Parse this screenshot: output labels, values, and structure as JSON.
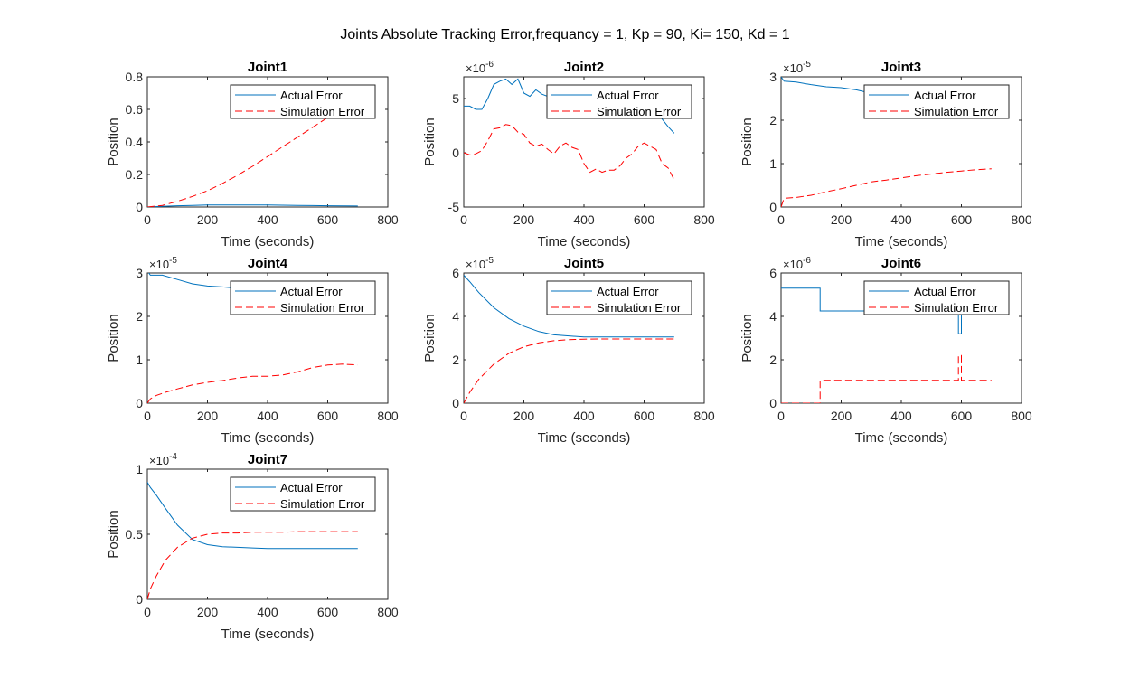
{
  "figure_title": "Joints Absolute Tracking Error,frequancy = 1, Kp = 90, Ki= 150, Kd = 1",
  "colors": {
    "actual": "#0072BD",
    "simulation": "#FF0000",
    "axes": "#262626"
  },
  "chart_data": [
    {
      "type": "line",
      "title": "Joint1",
      "xlabel": "Time (seconds)",
      "ylabel": "Position",
      "xlim": [
        0,
        800
      ],
      "ylim": [
        0,
        0.8
      ],
      "xticks": [
        "0",
        "200",
        "400",
        "600",
        "800"
      ],
      "yticks": [
        "0",
        "0.2",
        "0.4",
        "0.6",
        "0.8"
      ],
      "exponent": "",
      "legend": {
        "position": "top-right",
        "entries": [
          "Actual Error",
          "Simulation Error"
        ]
      },
      "series": [
        {
          "name": "Actual Error",
          "style": "solid",
          "x": [
            0,
            20,
            50,
            100,
            150,
            200,
            250,
            300,
            350,
            400,
            450,
            500,
            550,
            600,
            650,
            700
          ],
          "y": [
            0,
            0.002,
            0.004,
            0.008,
            0.01,
            0.012,
            0.013,
            0.013,
            0.013,
            0.012,
            0.011,
            0.01,
            0.009,
            0.008,
            0.007,
            0.006
          ]
        },
        {
          "name": "Simulation Error",
          "style": "dashed",
          "x": [
            0,
            50,
            100,
            150,
            200,
            250,
            300,
            350,
            400,
            450,
            500,
            550,
            600,
            650,
            700
          ],
          "y": [
            0,
            0.01,
            0.035,
            0.065,
            0.1,
            0.145,
            0.195,
            0.25,
            0.31,
            0.37,
            0.43,
            0.49,
            0.55,
            0.6,
            0.64
          ]
        }
      ]
    },
    {
      "type": "line",
      "title": "Joint2",
      "xlabel": "Time (seconds)",
      "ylabel": "Position",
      "xlim": [
        0,
        800
      ],
      "ylim": [
        -5,
        7
      ],
      "xticks": [
        "0",
        "200",
        "400",
        "600",
        "800"
      ],
      "yticks": [
        "-5",
        "0",
        "5"
      ],
      "exponent": "-6",
      "legend": {
        "position": "top-right",
        "entries": [
          "Actual Error",
          "Simulation Error"
        ]
      },
      "series": [
        {
          "name": "Actual Error",
          "style": "solid",
          "x": [
            0,
            20,
            40,
            60,
            80,
            100,
            120,
            140,
            160,
            180,
            200,
            220,
            240,
            260,
            280,
            300,
            320,
            340,
            360,
            380,
            400,
            420,
            440,
            460,
            480,
            500,
            520,
            540,
            560,
            580,
            600,
            620,
            640,
            660,
            680,
            700
          ],
          "y": [
            4.3,
            4.3,
            4,
            4,
            5,
            6.3,
            6.6,
            6.8,
            6.3,
            6.8,
            5.5,
            5.2,
            5.8,
            5.4,
            5.2,
            4.2,
            4.5,
            4.8,
            5,
            4.6,
            3.9,
            4.5,
            3.9,
            3.4,
            3.9,
            4.2,
            3.6,
            3.4,
            3.8,
            3.9,
            4,
            4.2,
            4,
            3.1,
            2.4,
            1.8
          ]
        },
        {
          "name": "Simulation Error",
          "style": "dashed",
          "x": [
            0,
            20,
            40,
            60,
            80,
            100,
            120,
            140,
            160,
            180,
            200,
            220,
            240,
            260,
            280,
            300,
            320,
            340,
            360,
            380,
            400,
            420,
            440,
            460,
            480,
            500,
            520,
            540,
            560,
            580,
            600,
            620,
            640,
            660,
            680,
            700
          ],
          "y": [
            0,
            -0.2,
            -0.1,
            0.2,
            1.1,
            2.2,
            2.3,
            2.6,
            2.5,
            1.9,
            1.7,
            0.9,
            0.6,
            0.8,
            0.3,
            -0.1,
            0.6,
            0.9,
            0.5,
            0.3,
            -1,
            -1.8,
            -1.5,
            -1.8,
            -1.6,
            -1.6,
            -1.2,
            -0.5,
            -0.1,
            0.6,
            0.9,
            0.6,
            0.3,
            -1,
            -1.4,
            -2.5
          ]
        }
      ]
    },
    {
      "type": "line",
      "title": "Joint3",
      "xlabel": "Time (seconds)",
      "ylabel": "Position",
      "xlim": [
        0,
        800
      ],
      "ylim": [
        0,
        3
      ],
      "xticks": [
        "0",
        "200",
        "400",
        "600",
        "800"
      ],
      "yticks": [
        "0",
        "1",
        "2",
        "3"
      ],
      "exponent": "-5",
      "legend": {
        "position": "top-right",
        "entries": [
          "Actual Error",
          "Simulation Error"
        ]
      },
      "series": [
        {
          "name": "Actual Error",
          "style": "solid",
          "x": [
            0,
            10,
            50,
            100,
            150,
            200,
            250,
            300,
            350,
            400,
            450,
            500,
            550,
            600,
            650,
            700
          ],
          "y": [
            3,
            2.9,
            2.88,
            2.82,
            2.77,
            2.75,
            2.7,
            2.62,
            2.6,
            2.58,
            2.57,
            2.55,
            2.55,
            2.55,
            2.55,
            2.55
          ]
        },
        {
          "name": "Simulation Error",
          "style": "dashed",
          "x": [
            0,
            10,
            50,
            100,
            150,
            200,
            250,
            300,
            350,
            400,
            450,
            500,
            550,
            600,
            650,
            700
          ],
          "y": [
            0,
            0.2,
            0.22,
            0.27,
            0.35,
            0.42,
            0.5,
            0.58,
            0.62,
            0.67,
            0.72,
            0.76,
            0.8,
            0.83,
            0.86,
            0.88
          ]
        }
      ]
    },
    {
      "type": "line",
      "title": "Joint4",
      "xlabel": "Time (seconds)",
      "ylabel": "Position",
      "xlim": [
        0,
        800
      ],
      "ylim": [
        0,
        3
      ],
      "xticks": [
        "0",
        "200",
        "400",
        "600",
        "800"
      ],
      "yticks": [
        "0",
        "1",
        "2",
        "3"
      ],
      "exponent": "-5",
      "legend": {
        "position": "top-right",
        "entries": [
          "Actual Error",
          "Simulation Error"
        ]
      },
      "series": [
        {
          "name": "Actual Error",
          "style": "solid",
          "x": [
            0,
            10,
            50,
            100,
            150,
            200,
            250,
            300,
            350,
            400,
            450,
            500,
            550,
            600,
            650,
            700
          ],
          "y": [
            3.05,
            2.95,
            2.95,
            2.85,
            2.75,
            2.7,
            2.68,
            2.65,
            2.62,
            2.6,
            2.58,
            2.57,
            2.56,
            2.55,
            2.55,
            2.55
          ]
        },
        {
          "name": "Simulation Error",
          "style": "dashed",
          "x": [
            0,
            10,
            30,
            60,
            100,
            150,
            200,
            250,
            300,
            350,
            400,
            450,
            500,
            550,
            600,
            650,
            700
          ],
          "y": [
            0,
            0.1,
            0.18,
            0.25,
            0.33,
            0.42,
            0.48,
            0.52,
            0.58,
            0.62,
            0.62,
            0.65,
            0.72,
            0.82,
            0.88,
            0.9,
            0.88
          ]
        }
      ]
    },
    {
      "type": "line",
      "title": "Joint5",
      "xlabel": "Time (seconds)",
      "ylabel": "Position",
      "xlim": [
        0,
        800
      ],
      "ylim": [
        0,
        6
      ],
      "xticks": [
        "0",
        "200",
        "400",
        "600",
        "800"
      ],
      "yticks": [
        "0",
        "2",
        "4",
        "6"
      ],
      "exponent": "-5",
      "legend": {
        "position": "top-right",
        "entries": [
          "Actual Error",
          "Simulation Error"
        ]
      },
      "series": [
        {
          "name": "Actual Error",
          "style": "solid",
          "x": [
            0,
            20,
            50,
            100,
            150,
            200,
            250,
            300,
            350,
            400,
            450,
            500,
            550,
            600,
            650,
            700
          ],
          "y": [
            5.9,
            5.6,
            5.1,
            4.4,
            3.9,
            3.55,
            3.3,
            3.15,
            3.1,
            3.05,
            3.05,
            3.05,
            3.05,
            3.05,
            3.05,
            3.05
          ]
        },
        {
          "name": "Simulation Error",
          "style": "dashed",
          "x": [
            0,
            20,
            50,
            100,
            150,
            200,
            250,
            300,
            350,
            400,
            450,
            500,
            550,
            600,
            650,
            700
          ],
          "y": [
            0,
            0.5,
            1.1,
            1.8,
            2.3,
            2.6,
            2.78,
            2.88,
            2.93,
            2.95,
            2.96,
            2.96,
            2.96,
            2.96,
            2.96,
            2.96
          ]
        }
      ]
    },
    {
      "type": "line",
      "title": "Joint6",
      "xlabel": "Time (seconds)",
      "ylabel": "Position",
      "xlim": [
        0,
        800
      ],
      "ylim": [
        0,
        6
      ],
      "xticks": [
        "0",
        "200",
        "400",
        "600",
        "800"
      ],
      "yticks": [
        "0",
        "2",
        "4",
        "6"
      ],
      "exponent": "-6",
      "legend": {
        "position": "top-right",
        "entries": [
          "Actual Error",
          "Simulation Error"
        ]
      },
      "series": [
        {
          "name": "Actual Error",
          "style": "solid",
          "x": [
            0,
            130,
            130,
            590,
            590,
            595,
            600,
            600,
            605,
            605,
            700
          ],
          "y": [
            5.3,
            5.3,
            4.25,
            4.25,
            3.2,
            3.2,
            3.2,
            4.25,
            4.25,
            4.25,
            4.25
          ]
        },
        {
          "name": "Simulation Error",
          "style": "dashed",
          "x": [
            0,
            130,
            130,
            590,
            590,
            600,
            600,
            605,
            605,
            700
          ],
          "y": [
            0,
            0,
            1.05,
            1.05,
            2.2,
            2.2,
            1.05,
            1.05,
            1.05,
            1.05
          ]
        }
      ]
    },
    {
      "type": "line",
      "title": "Joint7",
      "xlabel": "Time (seconds)",
      "ylabel": "Position",
      "xlim": [
        0,
        800
      ],
      "ylim": [
        0,
        1
      ],
      "xticks": [
        "0",
        "200",
        "400",
        "600",
        "800"
      ],
      "yticks": [
        "0",
        "0.5",
        "1"
      ],
      "exponent": "-4",
      "legend": {
        "position": "top-right",
        "entries": [
          "Actual Error",
          "Simulation Error"
        ]
      },
      "series": [
        {
          "name": "Actual Error",
          "style": "solid",
          "x": [
            0,
            10,
            30,
            60,
            100,
            150,
            200,
            250,
            300,
            350,
            400,
            450,
            500,
            550,
            600,
            650,
            700
          ],
          "y": [
            0.9,
            0.86,
            0.8,
            0.7,
            0.57,
            0.46,
            0.42,
            0.405,
            0.4,
            0.395,
            0.39,
            0.39,
            0.39,
            0.39,
            0.39,
            0.39,
            0.39
          ]
        },
        {
          "name": "Simulation Error",
          "style": "dashed",
          "x": [
            0,
            10,
            30,
            60,
            100,
            150,
            200,
            250,
            300,
            350,
            400,
            450,
            500,
            550,
            600,
            650,
            700
          ],
          "y": [
            0,
            0.08,
            0.18,
            0.3,
            0.4,
            0.47,
            0.5,
            0.51,
            0.51,
            0.515,
            0.515,
            0.515,
            0.52,
            0.52,
            0.52,
            0.52,
            0.52
          ]
        }
      ]
    }
  ]
}
